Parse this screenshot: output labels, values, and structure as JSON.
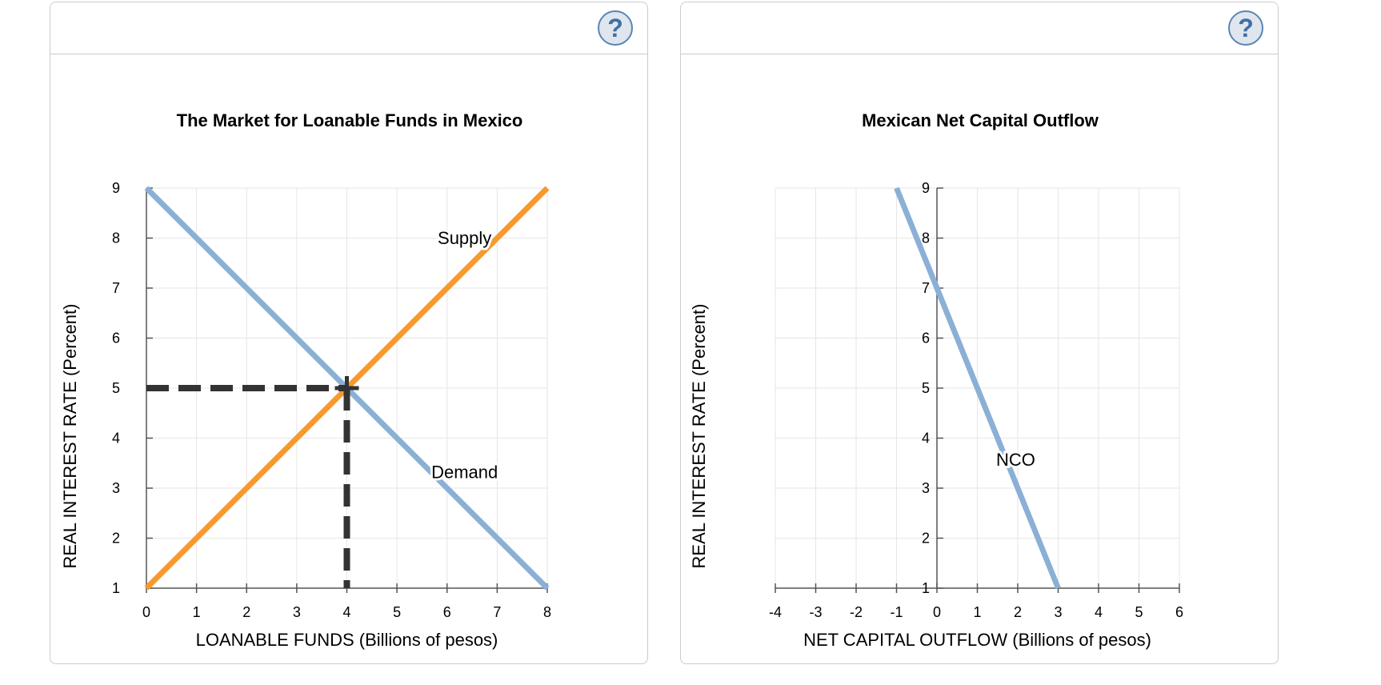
{
  "help_label": "?",
  "chart_data": [
    {
      "type": "line",
      "title": "The Market for Loanable Funds in Mexico",
      "xlabel": "LOANABLE FUNDS (Billions of pesos)",
      "ylabel": "REAL INTEREST RATE (Percent)",
      "xlim": [
        0,
        8
      ],
      "ylim": [
        1,
        9
      ],
      "xticks": [
        "0",
        "1",
        "2",
        "3",
        "4",
        "5",
        "6",
        "7",
        "8"
      ],
      "yticks": [
        "1",
        "2",
        "3",
        "4",
        "5",
        "6",
        "7",
        "8",
        "9"
      ],
      "grid": true,
      "series": [
        {
          "name": "Supply",
          "color": "#f7992e",
          "points": [
            [
              0,
              1
            ],
            [
              8,
              9
            ]
          ]
        },
        {
          "name": "Demand",
          "color": "#8bb0d6",
          "points": [
            [
              0,
              9
            ],
            [
              8,
              1
            ]
          ]
        }
      ],
      "equilibrium": {
        "x": 4,
        "y": 5,
        "marker": "cross",
        "guides": "dashed",
        "color": "#333333"
      }
    },
    {
      "type": "line",
      "title": "Mexican Net Capital Outflow",
      "xlabel": "NET CAPITAL OUTFLOW (Billions of pesos)",
      "ylabel": "REAL INTEREST RATE (Percent)",
      "xlim": [
        -4,
        6
      ],
      "ylim": [
        1,
        9
      ],
      "xticks": [
        "-4",
        "-3",
        "-2",
        "-1",
        "0",
        "1",
        "2",
        "3",
        "4",
        "5",
        "6"
      ],
      "yticks": [
        "1",
        "2",
        "3",
        "4",
        "5",
        "6",
        "7",
        "8",
        "9"
      ],
      "grid": true,
      "series": [
        {
          "name": "NCO",
          "color": "#8bb0d6",
          "points": [
            [
              -1,
              9
            ],
            [
              3,
              1
            ]
          ]
        }
      ]
    }
  ]
}
